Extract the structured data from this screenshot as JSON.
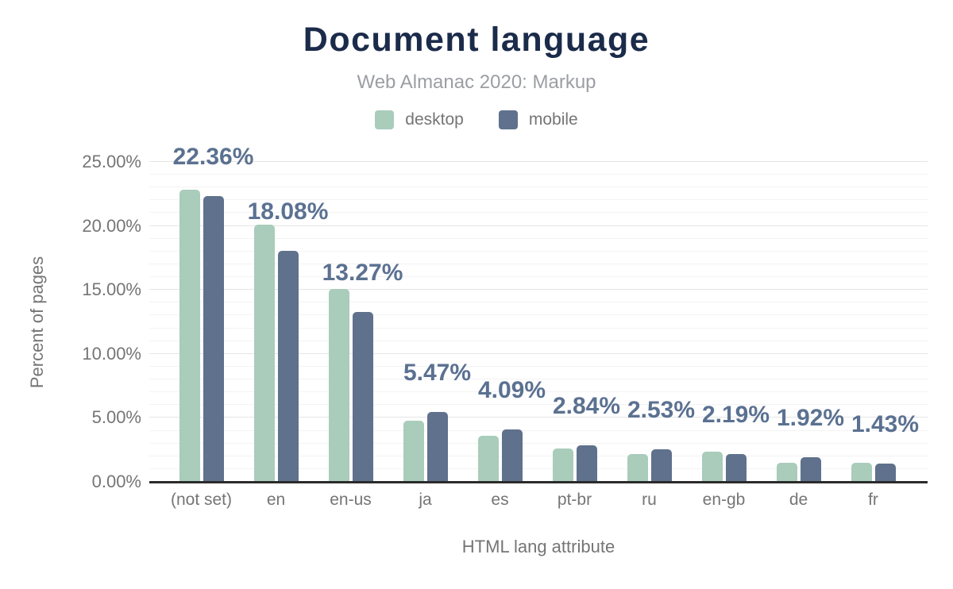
{
  "chart_data": {
    "type": "bar",
    "title": "Document language",
    "subtitle": "Web Almanac 2020: Markup",
    "xlabel": "HTML lang attribute",
    "ylabel": "Percent of pages",
    "categories": [
      "(not set)",
      "en",
      "en-us",
      "ja",
      "es",
      "pt-br",
      "ru",
      "en-gb",
      "de",
      "fr"
    ],
    "series": [
      {
        "name": "desktop",
        "color": "#a9ccbb",
        "values": [
          22.85,
          20.1,
          15.1,
          4.8,
          3.6,
          2.6,
          2.2,
          2.35,
          1.5,
          1.52
        ]
      },
      {
        "name": "mobile",
        "color": "#5f718c",
        "values": [
          22.36,
          18.08,
          13.27,
          5.47,
          4.09,
          2.84,
          2.53,
          2.19,
          1.92,
          1.43
        ]
      }
    ],
    "value_labels": [
      "22.36%",
      "18.08%",
      "13.27%",
      "5.47%",
      "4.09%",
      "2.84%",
      "2.53%",
      "2.19%",
      "1.92%",
      "1.43%"
    ],
    "value_labels_series": "mobile",
    "ylim": [
      0,
      25
    ],
    "yticks": [
      "0.00%",
      "5.00%",
      "10.00%",
      "15.00%",
      "20.00%",
      "25.00%"
    ],
    "grid": {
      "minor_interval_pct": 1,
      "major_interval_pct": 5,
      "orientation": "horizontal"
    },
    "legend_position": "top"
  },
  "colors": {
    "background": "#ffffff",
    "title": "#1b2b4a",
    "subtitle": "#9b9ea3",
    "axis_text": "#757575",
    "data_label": "#5b7191",
    "axis_line": "#2b2b2b",
    "grid_major": "#e5e5e5",
    "grid_minor": "#f3f3f3"
  }
}
